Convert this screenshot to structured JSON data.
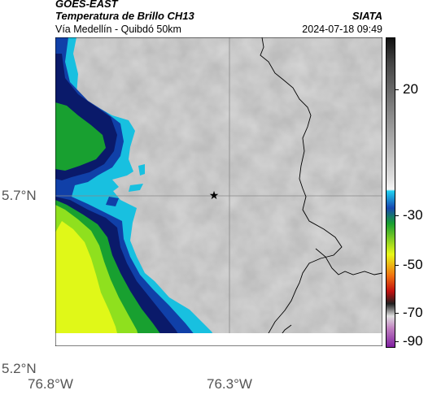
{
  "header": {
    "satellite": "GOES-EAST",
    "product": "Temperatura de Brillo CH13",
    "region": "Vía Medellín - Quibdó 50km",
    "organization": "SIATA",
    "datetime": "2024-07-18 09:49"
  },
  "axes": {
    "lat_ticks": [
      "5.7°N",
      "5.2°N"
    ],
    "lon_ticks": [
      "76.8°W",
      "76.3°W"
    ]
  },
  "colorbar": {
    "labels": [
      "20",
      "-30",
      "-50",
      "-70",
      "-90"
    ]
  },
  "map": {
    "marker_icon": "star-icon",
    "colors": {
      "cloud_gray": "#c8c8c8",
      "cyan": "#18c0e0",
      "blue": "#1040a8",
      "navy": "#0a1a6a",
      "green": "#18a030",
      "yellow_green": "#b8f020",
      "yellow": "#e8f818",
      "border_line": "#000000",
      "grid_line": "#888888"
    }
  }
}
